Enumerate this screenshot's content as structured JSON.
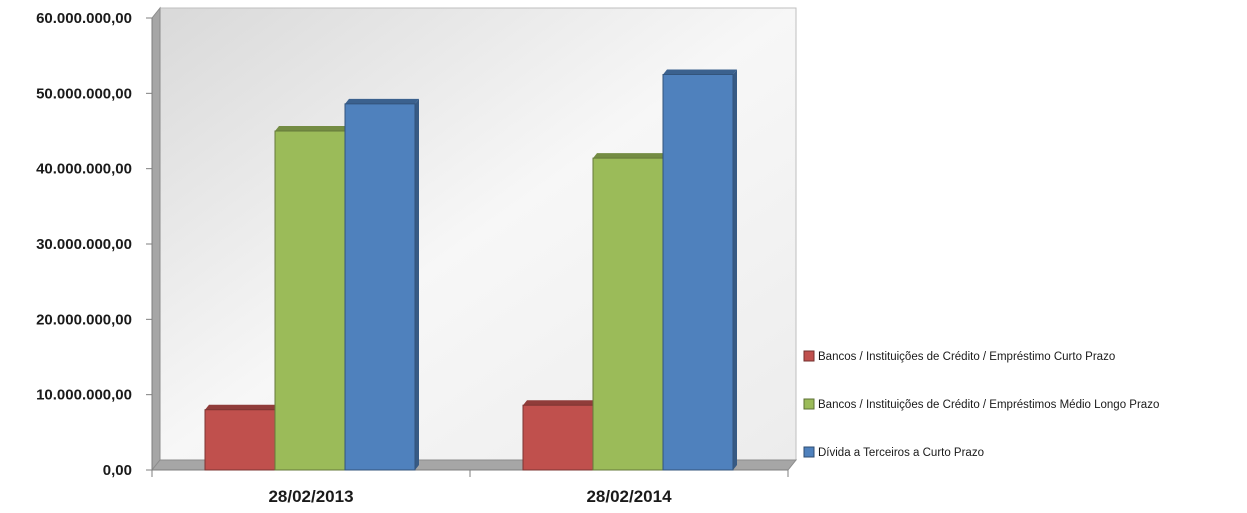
{
  "chart_data": {
    "type": "bar",
    "categories": [
      "28/02/2013",
      "28/02/2014"
    ],
    "series": [
      {
        "name": "Bancos / Instituições de Crédito / Empréstimo Curto Prazo",
        "values": [
          8000000,
          8600000
        ],
        "color": "#c0504d"
      },
      {
        "name": "Bancos / Instituições de Crédito / Empréstimos Médio Longo Prazo",
        "values": [
          45000000,
          41400000
        ],
        "color": "#9bbb59"
      },
      {
        "name": "Dívida a Terceiros a Curto Prazo",
        "values": [
          48600000,
          52500000
        ],
        "color": "#4f81bd"
      }
    ],
    "yticks": [
      "0,00",
      "10.000.000,00",
      "20.000.000,00",
      "30.000.000,00",
      "40.000.000,00",
      "50.000.000,00",
      "60.000.000,00"
    ],
    "ylim": [
      0,
      60000000
    ],
    "legend_position": "right",
    "grid": false,
    "style": "3d-clustered-column"
  }
}
